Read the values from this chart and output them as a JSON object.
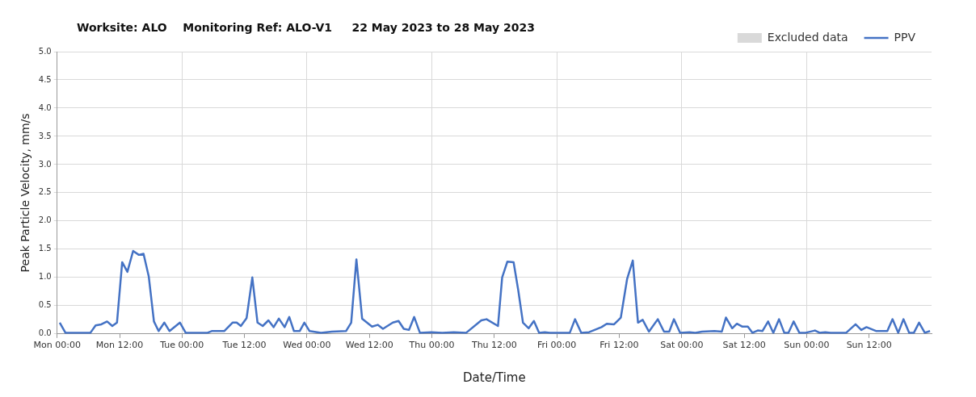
{
  "chart_data": {
    "type": "line",
    "title": "Worksite: ALO    Monitoring Ref: ALO-V1     22 May 2023 to 28 May 2023",
    "xlabel": "Date/Time",
    "ylabel": "Peak Particle Velocity, mm/s",
    "xlim": [
      "2023-05-22T00:00",
      "2023-05-29T00:00"
    ],
    "xticks": [
      {
        "value": "2023-05-22T00:00",
        "label": "Mon 00:00"
      },
      {
        "value": "2023-05-22T12:00",
        "label": "Mon 12:00"
      },
      {
        "value": "2023-05-23T00:00",
        "label": "Tue 00:00"
      },
      {
        "value": "2023-05-23T12:00",
        "label": "Tue 12:00"
      },
      {
        "value": "2023-05-24T00:00",
        "label": "Wed 00:00"
      },
      {
        "value": "2023-05-24T12:00",
        "label": "Wed 12:00"
      },
      {
        "value": "2023-05-25T00:00",
        "label": "Thu 00:00"
      },
      {
        "value": "2023-05-25T12:00",
        "label": "Thu 12:00"
      },
      {
        "value": "2023-05-26T00:00",
        "label": "Fri 00:00"
      },
      {
        "value": "2023-05-26T12:00",
        "label": "Fri 12:00"
      },
      {
        "value": "2023-05-27T00:00",
        "label": "Sat 00:00"
      },
      {
        "value": "2023-05-27T12:00",
        "label": "Sat 12:00"
      },
      {
        "value": "2023-05-28T00:00",
        "label": "Sun 00:00"
      },
      {
        "value": "2023-05-28T12:00",
        "label": "Sun 12:00"
      }
    ],
    "ylim": [
      0,
      5
    ],
    "yticks": [
      {
        "value": 0,
        "label": "0.0"
      },
      {
        "value": 0.5,
        "label": "0.5"
      },
      {
        "value": 1,
        "label": "1.0"
      },
      {
        "value": 1.5,
        "label": "1.5"
      },
      {
        "value": 2,
        "label": "2.0"
      },
      {
        "value": 2.5,
        "label": "2.5"
      },
      {
        "value": 3,
        "label": "3.0"
      },
      {
        "value": 3.5,
        "label": "3.5"
      },
      {
        "value": 4,
        "label": "4.0"
      },
      {
        "value": 4.5,
        "label": "4.5"
      },
      {
        "value": 5,
        "label": "5.0"
      }
    ],
    "grid": true,
    "legend": "top right",
    "marker": "none",
    "line_style": "solid",
    "series": [
      {
        "name": "Excluded data",
        "type": "bar",
        "color": "#d9d9d9"
      },
      {
        "name": "PPV",
        "color": "#4472c4",
        "x": [
          "2023-05-22T00:30",
          "2023-05-22T01:36",
          "2023-05-22T06:24",
          "2023-05-22T07:24",
          "2023-05-22T08:30",
          "2023-05-22T09:36",
          "2023-05-22T10:36",
          "2023-05-22T11:30",
          "2023-05-22T12:30",
          "2023-05-22T13:30",
          "2023-05-22T14:36",
          "2023-05-22T15:42",
          "2023-05-22T16:36",
          "2023-05-22T17:36",
          "2023-05-22T18:36",
          "2023-05-22T19:30",
          "2023-05-22T20:36",
          "2023-05-22T21:36",
          "2023-05-22T23:36",
          "2023-05-23T00:42",
          "2023-05-23T04:54",
          "2023-05-23T05:42",
          "2023-05-23T08:06",
          "2023-05-23T09:42",
          "2023-05-23T10:30",
          "2023-05-23T11:18",
          "2023-05-23T12:24",
          "2023-05-23T13:30",
          "2023-05-23T14:30",
          "2023-05-23T15:30",
          "2023-05-23T16:36",
          "2023-05-23T17:36",
          "2023-05-23T18:36",
          "2023-05-23T19:42",
          "2023-05-23T20:36",
          "2023-05-23T21:30",
          "2023-05-23T22:36",
          "2023-05-23T23:30",
          "2023-05-24T00:30",
          "2023-05-24T02:42",
          "2023-05-24T04:48",
          "2023-05-24T07:30",
          "2023-05-24T08:30",
          "2023-05-24T09:30",
          "2023-05-24T10:36",
          "2023-05-24T12:30",
          "2023-05-24T13:36",
          "2023-05-24T14:36",
          "2023-05-24T16:30",
          "2023-05-24T17:36",
          "2023-05-24T18:36",
          "2023-05-24T19:36",
          "2023-05-24T20:36",
          "2023-05-24T21:42",
          "2023-05-24T23:54",
          "2023-05-25T02:00",
          "2023-05-25T04:12",
          "2023-05-25T06:36",
          "2023-05-25T09:30",
          "2023-05-25T10:30",
          "2023-05-25T12:42",
          "2023-05-25T13:30",
          "2023-05-25T14:30",
          "2023-05-25T15:42",
          "2023-05-25T16:36",
          "2023-05-25T17:30",
          "2023-05-25T18:36",
          "2023-05-25T19:36",
          "2023-05-25T20:36",
          "2023-05-25T21:42",
          "2023-05-25T22:42",
          "2023-05-26T02:30",
          "2023-05-26T03:30",
          "2023-05-26T04:42",
          "2023-05-26T06:12",
          "2023-05-26T08:36",
          "2023-05-26T09:36",
          "2023-05-26T11:00",
          "2023-05-26T12:18",
          "2023-05-26T13:30",
          "2023-05-26T14:36",
          "2023-05-26T15:36",
          "2023-05-26T16:30",
          "2023-05-26T17:42",
          "2023-05-26T19:24",
          "2023-05-26T20:36",
          "2023-05-26T21:36",
          "2023-05-26T22:30",
          "2023-05-26T23:42",
          "2023-05-27T01:30",
          "2023-05-27T02:36",
          "2023-05-27T03:54",
          "2023-05-27T06:18",
          "2023-05-27T07:42",
          "2023-05-27T08:30",
          "2023-05-27T09:42",
          "2023-05-27T10:36",
          "2023-05-27T11:36",
          "2023-05-27T12:42",
          "2023-05-27T13:36",
          "2023-05-27T14:36",
          "2023-05-27T15:30",
          "2023-05-27T16:36",
          "2023-05-27T17:36",
          "2023-05-27T18:42",
          "2023-05-27T19:42",
          "2023-05-27T20:30",
          "2023-05-27T21:30",
          "2023-05-27T22:36",
          "2023-05-27T23:48",
          "2023-05-28T01:36",
          "2023-05-28T02:30",
          "2023-05-28T03:36",
          "2023-05-28T04:36",
          "2023-05-28T07:36",
          "2023-05-28T09:24",
          "2023-05-28T10:30",
          "2023-05-28T11:30",
          "2023-05-28T13:24",
          "2023-05-28T15:30",
          "2023-05-28T16:30",
          "2023-05-28T17:36",
          "2023-05-28T18:36",
          "2023-05-28T19:42",
          "2023-05-28T20:36",
          "2023-05-28T21:36",
          "2023-05-28T22:42",
          "2023-05-28T23:42"
        ],
        "values": [
          0.2,
          0.02,
          0.02,
          0.15,
          0.17,
          0.22,
          0.14,
          0.2,
          1.27,
          1.1,
          1.47,
          1.4,
          1.42,
          1.02,
          0.22,
          0.05,
          0.2,
          0.05,
          0.2,
          0.02,
          0.02,
          0.05,
          0.05,
          0.2,
          0.2,
          0.14,
          0.28,
          1.0,
          0.2,
          0.14,
          0.24,
          0.12,
          0.27,
          0.12,
          0.3,
          0.05,
          0.05,
          0.2,
          0.05,
          0.02,
          0.04,
          0.05,
          0.2,
          1.32,
          0.27,
          0.13,
          0.16,
          0.09,
          0.2,
          0.23,
          0.09,
          0.07,
          0.3,
          0.02,
          0.03,
          0.02,
          0.03,
          0.02,
          0.24,
          0.26,
          0.14,
          1.0,
          1.28,
          1.27,
          0.77,
          0.2,
          0.1,
          0.23,
          0.02,
          0.03,
          0.02,
          0.02,
          0.26,
          0.02,
          0.03,
          0.12,
          0.18,
          0.17,
          0.29,
          0.97,
          1.3,
          0.2,
          0.25,
          0.04,
          0.26,
          0.04,
          0.04,
          0.26,
          0.02,
          0.03,
          0.02,
          0.04,
          0.05,
          0.04,
          0.29,
          0.1,
          0.18,
          0.13,
          0.13,
          0.02,
          0.06,
          0.05,
          0.22,
          0.02,
          0.26,
          0.02,
          0.02,
          0.22,
          0.02,
          0.02,
          0.06,
          0.02,
          0.03,
          0.02,
          0.02,
          0.17,
          0.07,
          0.12,
          0.05,
          0.05,
          0.26,
          0.02,
          0.26,
          0.02,
          0.02,
          0.2,
          0.02,
          0.05
        ]
      }
    ]
  }
}
